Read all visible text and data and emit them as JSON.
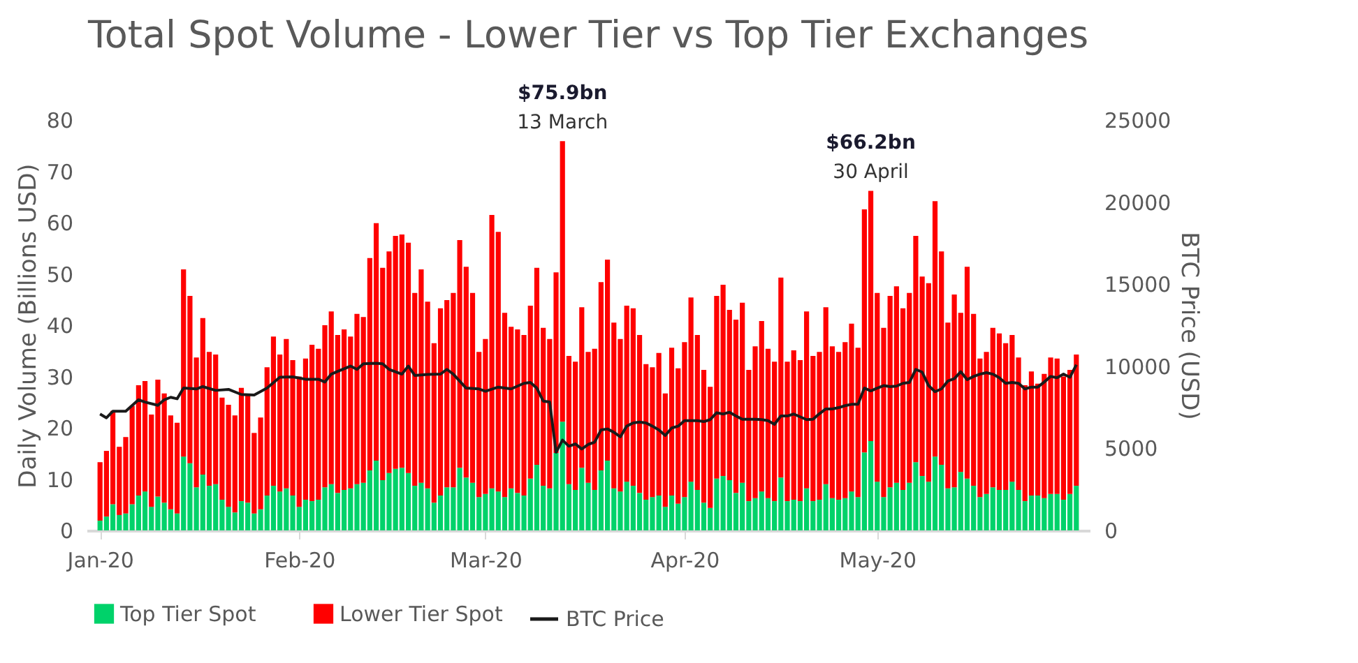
{
  "chart_data": {
    "type": "bar",
    "stacked": true,
    "title": "Total Spot Volume - Lower Tier vs Top Tier Exchanges",
    "ylabel": "Daily Volume (Billions USD)",
    "y2label": "BTC Price (USD)",
    "x": [
      "2020-01-01",
      "2020-01-02",
      "2020-01-03",
      "2020-01-04",
      "2020-01-05",
      "2020-01-06",
      "2020-01-07",
      "2020-01-08",
      "2020-01-09",
      "2020-01-10",
      "2020-01-11",
      "2020-01-12",
      "2020-01-13",
      "2020-01-14",
      "2020-01-15",
      "2020-01-16",
      "2020-01-17",
      "2020-01-18",
      "2020-01-19",
      "2020-01-20",
      "2020-01-21",
      "2020-01-22",
      "2020-01-23",
      "2020-01-24",
      "2020-01-25",
      "2020-01-26",
      "2020-01-27",
      "2020-01-28",
      "2020-01-29",
      "2020-01-30",
      "2020-01-31",
      "2020-02-01",
      "2020-02-02",
      "2020-02-03",
      "2020-02-04",
      "2020-02-05",
      "2020-02-06",
      "2020-02-07",
      "2020-02-08",
      "2020-02-09",
      "2020-02-10",
      "2020-02-11",
      "2020-02-12",
      "2020-02-13",
      "2020-02-14",
      "2020-02-15",
      "2020-02-16",
      "2020-02-17",
      "2020-02-18",
      "2020-02-19",
      "2020-02-20",
      "2020-02-21",
      "2020-02-22",
      "2020-02-23",
      "2020-02-24",
      "2020-02-25",
      "2020-02-26",
      "2020-02-27",
      "2020-02-28",
      "2020-02-29",
      "2020-03-01",
      "2020-03-02",
      "2020-03-03",
      "2020-03-04",
      "2020-03-05",
      "2020-03-06",
      "2020-03-07",
      "2020-03-08",
      "2020-03-09",
      "2020-03-10",
      "2020-03-11",
      "2020-03-12",
      "2020-03-13",
      "2020-03-14",
      "2020-03-15",
      "2020-03-16",
      "2020-03-17",
      "2020-03-18",
      "2020-03-19",
      "2020-03-20",
      "2020-03-21",
      "2020-03-22",
      "2020-03-23",
      "2020-03-24",
      "2020-03-25",
      "2020-03-26",
      "2020-03-27",
      "2020-03-28",
      "2020-03-29",
      "2020-03-30",
      "2020-03-31",
      "2020-04-01",
      "2020-04-02",
      "2020-04-03",
      "2020-04-04",
      "2020-04-05",
      "2020-04-06",
      "2020-04-07",
      "2020-04-08",
      "2020-04-09",
      "2020-04-10",
      "2020-04-11",
      "2020-04-12",
      "2020-04-13",
      "2020-04-14",
      "2020-04-15",
      "2020-04-16",
      "2020-04-17",
      "2020-04-18",
      "2020-04-19",
      "2020-04-20",
      "2020-04-21",
      "2020-04-22",
      "2020-04-23",
      "2020-04-24",
      "2020-04-25",
      "2020-04-26",
      "2020-04-27",
      "2020-04-28",
      "2020-04-29",
      "2020-04-30",
      "2020-05-01",
      "2020-05-02",
      "2020-05-03",
      "2020-05-04",
      "2020-05-05",
      "2020-05-06",
      "2020-05-07",
      "2020-05-08",
      "2020-05-09",
      "2020-05-10",
      "2020-05-11",
      "2020-05-12",
      "2020-05-13",
      "2020-05-14",
      "2020-05-15",
      "2020-05-16",
      "2020-05-17",
      "2020-05-18",
      "2020-05-19",
      "2020-05-20",
      "2020-05-21",
      "2020-05-22",
      "2020-05-23",
      "2020-05-24",
      "2020-05-25",
      "2020-05-26",
      "2020-05-27",
      "2020-05-28",
      "2020-05-29",
      "2020-05-30",
      "2020-05-31",
      "2020-06-01"
    ],
    "series": [
      {
        "name": "Top Tier Spot",
        "color": "#00d26a",
        "values": [
          1.9,
          2.7,
          5.1,
          3.0,
          3.3,
          5.1,
          6.8,
          7.6,
          4.6,
          6.6,
          5.4,
          4.1,
          3.3,
          14.4,
          13.1,
          8.4,
          10.9,
          8.7,
          9.0,
          6.0,
          4.6,
          3.5,
          5.7,
          5.4,
          3.3,
          4.1,
          6.8,
          8.7,
          7.6,
          8.2,
          6.8,
          4.6,
          6.0,
          5.7,
          6.0,
          8.4,
          9.0,
          7.3,
          7.9,
          8.2,
          9.0,
          9.3,
          11.7,
          13.6,
          9.8,
          11.2,
          12.0,
          12.2,
          11.2,
          8.7,
          9.3,
          8.2,
          5.4,
          6.8,
          8.4,
          8.4,
          12.2,
          10.3,
          9.3,
          6.5,
          7.1,
          8.2,
          7.6,
          6.5,
          8.2,
          7.3,
          6.8,
          10.1,
          12.8,
          8.7,
          8.2,
          15.1,
          21.2,
          9.0,
          7.9,
          12.2,
          9.3,
          7.9,
          11.7,
          13.6,
          8.2,
          7.6,
          9.5,
          8.7,
          7.3,
          6.0,
          6.5,
          6.8,
          4.6,
          6.8,
          5.2,
          6.5,
          9.5,
          7.9,
          5.4,
          4.4,
          10.1,
          10.6,
          9.8,
          7.3,
          9.3,
          5.7,
          6.3,
          7.6,
          6.3,
          5.7,
          10.3,
          5.7,
          6.0,
          5.7,
          8.2,
          5.7,
          6.0,
          9.0,
          6.3,
          6.0,
          6.3,
          7.6,
          6.5,
          15.2,
          17.4,
          9.5,
          6.5,
          8.4,
          9.3,
          7.9,
          9.3,
          13.3,
          10.6,
          9.5,
          14.4,
          12.8,
          8.2,
          8.4,
          11.4,
          10.1,
          8.7,
          6.5,
          7.1,
          8.4,
          7.9,
          7.9,
          9.5,
          7.9,
          5.7,
          6.8,
          6.8,
          6.3,
          7.1,
          7.1,
          6.0,
          7.1,
          8.7
        ]
      },
      {
        "name": "Lower Tier Spot",
        "color": "#ff0000",
        "values": [
          11.4,
          12.8,
          18.2,
          13.3,
          14.9,
          19.2,
          21.5,
          21.5,
          18.0,
          22.8,
          21.3,
          18.3,
          17.7,
          36.5,
          32.6,
          25.3,
          30.5,
          26.1,
          25.3,
          19.9,
          19.9,
          18.9,
          22.1,
          21.0,
          15.7,
          17.9,
          25.0,
          29.1,
          26.7,
          29.1,
          26.4,
          25.4,
          27.5,
          30.5,
          29.4,
          31.6,
          33.7,
          30.8,
          31.3,
          29.6,
          33.2,
          32.3,
          41.4,
          46.3,
          41.4,
          43.2,
          45.4,
          45.5,
          44.9,
          37.6,
          41.6,
          36.4,
          31.1,
          36.5,
          36.5,
          37.9,
          44.4,
          41.1,
          37.0,
          28.3,
          30.2,
          53.3,
          50.6,
          35.9,
          31.5,
          31.9,
          31.3,
          33.7,
          38.4,
          30.8,
          29.1,
          35.2,
          54.7,
          25.0,
          25.0,
          31.3,
          25.5,
          27.5,
          36.7,
          39.2,
          32.3,
          29.7,
          34.3,
          34.6,
          30.8,
          26.4,
          25.3,
          27.8,
          22.1,
          28.8,
          26.4,
          30.2,
          35.9,
          30.2,
          25.9,
          23.6,
          35.6,
          37.3,
          33.2,
          33.8,
          35.1,
          25.6,
          29.6,
          33.2,
          29.1,
          27.2,
          39.0,
          27.2,
          29.1,
          27.5,
          34.5,
          28.3,
          28.8,
          34.5,
          29.6,
          28.8,
          30.4,
          32.7,
          29.1,
          47.4,
          48.8,
          36.8,
          33.0,
          37.3,
          38.3,
          35.4,
          37.0,
          44.1,
          38.9,
          38.7,
          49.8,
          41.6,
          32.3,
          37.6,
          31.0,
          41.3,
          33.5,
          27.0,
          27.7,
          31.1,
          30.5,
          28.6,
          28.6,
          25.8,
          22.6,
          24.2,
          21.8,
          24.2,
          26.6,
          26.4,
          24.0,
          24.2,
          25.6
        ]
      },
      {
        "name": "BTC Price",
        "type": "line",
        "axis": "y2",
        "color": "#1a1a1a",
        "x": [
          "2020-01-01",
          "2020-01-02",
          "2020-01-03",
          "2020-01-05",
          "2020-01-07",
          "2020-01-08",
          "2020-01-10",
          "2020-01-11",
          "2020-01-12",
          "2020-01-13",
          "2020-01-14",
          "2020-01-16",
          "2020-01-17",
          "2020-01-19",
          "2020-01-21",
          "2020-01-23",
          "2020-01-25",
          "2020-01-27",
          "2020-01-29",
          "2020-01-31",
          "2020-02-02",
          "2020-02-04",
          "2020-02-05",
          "2020-02-06",
          "2020-02-07",
          "2020-02-09",
          "2020-02-10",
          "2020-02-11",
          "2020-02-13",
          "2020-02-14",
          "2020-02-15",
          "2020-02-17",
          "2020-02-18",
          "2020-02-19",
          "2020-02-21",
          "2020-02-23",
          "2020-02-24",
          "2020-02-25",
          "2020-02-27",
          "2020-02-29",
          "2020-03-01",
          "2020-03-03",
          "2020-03-05",
          "2020-03-07",
          "2020-03-08",
          "2020-03-09",
          "2020-03-10",
          "2020-03-11",
          "2020-03-12",
          "2020-03-13",
          "2020-03-14",
          "2020-03-15",
          "2020-03-16",
          "2020-03-17",
          "2020-03-18",
          "2020-03-19",
          "2020-03-20",
          "2020-03-21",
          "2020-03-22",
          "2020-03-23",
          "2020-03-24",
          "2020-03-25",
          "2020-03-26",
          "2020-03-27",
          "2020-03-28",
          "2020-03-29",
          "2020-03-30",
          "2020-03-31",
          "2020-04-01",
          "2020-04-02",
          "2020-04-03",
          "2020-04-04",
          "2020-04-05",
          "2020-04-06",
          "2020-04-07",
          "2020-04-08",
          "2020-04-09",
          "2020-04-10",
          "2020-04-11",
          "2020-04-12",
          "2020-04-13",
          "2020-04-14",
          "2020-04-15",
          "2020-04-16",
          "2020-04-17",
          "2020-04-18",
          "2020-04-19",
          "2020-04-20",
          "2020-04-21",
          "2020-04-22",
          "2020-04-23",
          "2020-04-24",
          "2020-04-25",
          "2020-04-26",
          "2020-04-27",
          "2020-04-28",
          "2020-04-29",
          "2020-04-30",
          "2020-05-01",
          "2020-05-02",
          "2020-05-03",
          "2020-05-04",
          "2020-05-05",
          "2020-05-06",
          "2020-05-07",
          "2020-05-08",
          "2020-05-09",
          "2020-05-10",
          "2020-05-11",
          "2020-05-12",
          "2020-05-13",
          "2020-05-14",
          "2020-05-15",
          "2020-05-16",
          "2020-05-17",
          "2020-05-18",
          "2020-05-19",
          "2020-05-20",
          "2020-05-21",
          "2020-05-22",
          "2020-05-23",
          "2020-05-24",
          "2020-05-25",
          "2020-05-26",
          "2020-05-27",
          "2020-05-28",
          "2020-05-29",
          "2020-05-30",
          "2020-05-31",
          "2020-06-01"
        ],
        "values": [
          7090,
          6860,
          7260,
          7260,
          7960,
          7820,
          7620,
          7960,
          8110,
          8020,
          8670,
          8620,
          8760,
          8530,
          8590,
          8280,
          8250,
          8670,
          9330,
          9350,
          9210,
          9210,
          9040,
          9520,
          9690,
          10010,
          9810,
          10150,
          10180,
          10150,
          9810,
          9520,
          10010,
          9440,
          9500,
          9520,
          9810,
          9520,
          8670,
          8620,
          8480,
          8730,
          8620,
          8960,
          9010,
          8670,
          7880,
          7820,
          4760,
          5500,
          5130,
          5270,
          4960,
          5240,
          5370,
          6120,
          6180,
          5980,
          5700,
          6350,
          6550,
          6600,
          6550,
          6350,
          6120,
          5780,
          6240,
          6350,
          6690,
          6690,
          6690,
          6630,
          6750,
          7170,
          7090,
          7200,
          6970,
          6770,
          6770,
          6770,
          6750,
          6690,
          6460,
          6970,
          6970,
          7090,
          6920,
          6750,
          6770,
          7110,
          7400,
          7400,
          7480,
          7600,
          7680,
          7680,
          8670,
          8500,
          8670,
          8820,
          8760,
          8790,
          8960,
          9010,
          9810,
          9640,
          8820,
          8450,
          8620,
          9100,
          9240,
          9670,
          9180,
          9380,
          9520,
          9610,
          9520,
          9300,
          8960,
          9010,
          8960,
          8620,
          8730,
          8730,
          9040,
          9380,
          9300,
          9520,
          9330,
          10090
        ]
      }
    ],
    "xlim": [
      "2019-12-31",
      "2020-06-02"
    ],
    "xticks": [
      {
        "value": "2020-01-01",
        "label": "Jan-20"
      },
      {
        "value": "2020-02-01",
        "label": "Feb-20"
      },
      {
        "value": "2020-03-01",
        "label": "Mar-20"
      },
      {
        "value": "2020-04-01",
        "label": "Apr-20"
      },
      {
        "value": "2020-05-01",
        "label": "May-20"
      }
    ],
    "ylim": [
      0,
      80
    ],
    "yticks": [
      0,
      10,
      20,
      30,
      40,
      50,
      60,
      70,
      80
    ],
    "y2lim": [
      0,
      25000
    ],
    "y2ticks": [
      0,
      5000,
      10000,
      15000,
      20000,
      25000
    ],
    "annotations": [
      {
        "text": "$75.9bn",
        "x": "2020-03-13",
        "y": 75.9
      },
      {
        "text": "13 March",
        "x": "2020-03-13",
        "y": 75.9
      },
      {
        "text": "$66.2bn",
        "x": "2020-04-30",
        "y": 66.2
      },
      {
        "text": "30 April",
        "x": "2020-04-30",
        "y": 66.2
      }
    ],
    "legend": "bottom",
    "grid": false
  }
}
